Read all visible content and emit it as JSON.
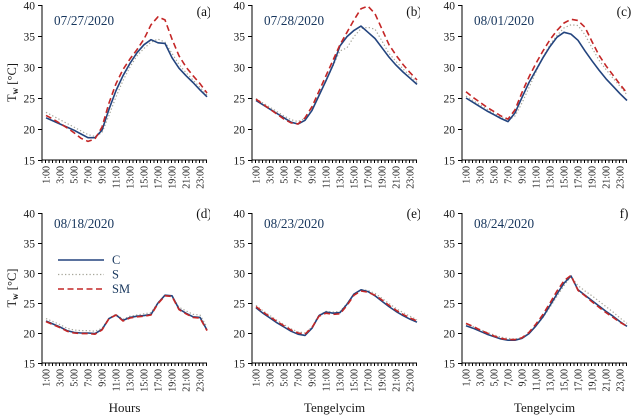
{
  "figure": {
    "background": "#ffffff",
    "axis_color": "#000000",
    "tick_text_color": "#1a1a1a",
    "date_color": "#17365d",
    "panel_color": "#111111",
    "series_colors": {
      "C": "#23447e",
      "S": "#a6a69a",
      "SM": "#c42626"
    },
    "legend": {
      "entries": [
        "C",
        "S",
        "SM"
      ]
    },
    "ylabel_parts": {
      "main": "T",
      "sub": "w",
      "unit": " [°C]"
    },
    "y_ticks": [
      15,
      20,
      25,
      30,
      35,
      40
    ],
    "x_hours": [
      1,
      2,
      3,
      4,
      5,
      6,
      7,
      8,
      9,
      10,
      11,
      12,
      13,
      14,
      15,
      16,
      17,
      18,
      19,
      20,
      21,
      22,
      23,
      24
    ],
    "x_tick_labels_colon": [
      "1:00",
      "3:00",
      "5:00",
      "7:00",
      "9:00",
      "11:00",
      "13:00",
      "15:00",
      "17:00",
      "19:00",
      "21:00",
      "23:00"
    ],
    "x_tick_labels_comma": [
      "1,00",
      "3,00",
      "5,00",
      "7,00",
      "9,00",
      "11,00",
      "13,00",
      "15,00",
      "17,00",
      "19,00",
      "21,00",
      "23,00"
    ]
  },
  "chart_data": [
    {
      "type": "line",
      "panel_label": "(a)",
      "date": "07/27/2020",
      "xlabel": "",
      "has_ylabel": true,
      "legend_visible": false,
      "tick_style": "colon",
      "ylim": [
        15,
        40
      ],
      "series": [
        {
          "name": "C",
          "values": [
            21.8,
            21.3,
            20.8,
            20.3,
            19.8,
            19.2,
            18.6,
            18.6,
            19.8,
            23.2,
            26.2,
            28.6,
            30.6,
            32.3,
            33.6,
            34.4,
            33.9,
            33.8,
            31.5,
            29.8,
            28.6,
            27.5,
            26.3,
            25.2
          ]
        },
        {
          "name": "S",
          "values": [
            22.7,
            22.1,
            21.5,
            20.9,
            20.3,
            19.7,
            19.1,
            18.8,
            19.4,
            22.2,
            25.2,
            27.8,
            30.0,
            31.8,
            33.0,
            34.0,
            34.5,
            34.0,
            32.2,
            30.4,
            29.1,
            27.9,
            26.7,
            25.5
          ]
        },
        {
          "name": "SM",
          "values": [
            22.2,
            21.6,
            20.9,
            20.2,
            19.4,
            18.5,
            18.0,
            18.4,
            20.3,
            24.2,
            27.3,
            29.6,
            31.3,
            32.8,
            34.5,
            36.8,
            38.1,
            37.6,
            34.5,
            31.8,
            30.0,
            28.6,
            27.3,
            25.8
          ]
        }
      ]
    },
    {
      "type": "line",
      "panel_label": "(b)",
      "date": "07/28/2020",
      "xlabel": "",
      "has_ylabel": false,
      "legend_visible": false,
      "tick_style": "colon",
      "ylim": [
        15,
        40
      ],
      "series": [
        {
          "name": "C",
          "values": [
            24.6,
            23.9,
            23.2,
            22.5,
            21.8,
            21.1,
            20.8,
            21.4,
            23.0,
            25.4,
            27.8,
            30.3,
            33.4,
            34.9,
            35.9,
            36.6,
            35.6,
            34.6,
            33.1,
            31.6,
            30.3,
            29.2,
            28.2,
            27.2
          ]
        },
        {
          "name": "S",
          "values": [
            24.9,
            24.2,
            23.5,
            22.8,
            22.1,
            21.5,
            21.2,
            21.7,
            23.1,
            25.4,
            27.8,
            30.2,
            32.6,
            33.1,
            34.9,
            36.2,
            36.4,
            36.1,
            34.2,
            32.2,
            30.9,
            29.7,
            28.6,
            27.5
          ]
        },
        {
          "name": "SM",
          "values": [
            24.8,
            24.0,
            23.2,
            22.4,
            21.6,
            21.0,
            20.8,
            21.8,
            23.6,
            26.1,
            28.6,
            31.1,
            33.6,
            35.6,
            37.6,
            39.4,
            39.8,
            38.6,
            36.1,
            33.6,
            31.9,
            30.4,
            29.1,
            27.9
          ]
        }
      ]
    },
    {
      "type": "line",
      "panel_label": "(c)",
      "date": "08/01/2020",
      "xlabel": "",
      "has_ylabel": false,
      "legend_visible": false,
      "tick_style": "colon",
      "ylim": [
        15,
        40
      ],
      "series": [
        {
          "name": "C",
          "values": [
            25.0,
            24.3,
            23.6,
            22.9,
            22.3,
            21.7,
            21.2,
            22.6,
            25.1,
            27.5,
            29.5,
            31.5,
            33.3,
            34.8,
            35.6,
            35.3,
            34.3,
            32.6,
            31.0,
            29.5,
            28.1,
            26.9,
            25.7,
            24.6
          ]
        },
        {
          "name": "S",
          "values": [
            25.3,
            24.6,
            23.9,
            23.2,
            22.5,
            21.9,
            21.4,
            22.1,
            24.2,
            26.7,
            29.2,
            31.6,
            33.6,
            35.1,
            36.3,
            36.8,
            36.7,
            35.2,
            33.1,
            31.1,
            29.6,
            28.2,
            26.9,
            25.5
          ]
        },
        {
          "name": "SM",
          "values": [
            26.0,
            25.1,
            24.3,
            23.5,
            22.8,
            22.1,
            21.6,
            23.1,
            25.9,
            28.4,
            30.6,
            32.6,
            34.4,
            35.9,
            37.1,
            37.7,
            37.5,
            36.4,
            34.1,
            31.9,
            30.2,
            28.7,
            27.2,
            25.8
          ]
        }
      ]
    },
    {
      "type": "line",
      "panel_label": "(d)",
      "date": "08/18/2020",
      "xlabel": "Hours",
      "has_ylabel": true,
      "legend_visible": true,
      "tick_style": "colon",
      "ylim": [
        15,
        40
      ],
      "series": [
        {
          "name": "C",
          "values": [
            22.0,
            21.5,
            21.0,
            20.4,
            20.1,
            20.0,
            20.0,
            19.9,
            20.6,
            22.4,
            23.0,
            22.1,
            22.6,
            22.8,
            22.9,
            23.1,
            25.0,
            26.3,
            26.2,
            24.0,
            23.3,
            22.7,
            22.6,
            20.5
          ]
        },
        {
          "name": "S",
          "values": [
            22.4,
            21.9,
            21.4,
            20.8,
            20.5,
            20.4,
            20.4,
            20.3,
            20.8,
            22.5,
            23.1,
            22.3,
            22.8,
            23.0,
            23.2,
            23.4,
            25.1,
            26.3,
            26.2,
            24.3,
            23.7,
            23.1,
            23.0,
            21.0
          ]
        },
        {
          "name": "SM",
          "values": [
            21.9,
            21.4,
            20.9,
            20.3,
            20.0,
            19.9,
            19.9,
            19.8,
            20.5,
            22.4,
            23.0,
            22.0,
            22.5,
            22.7,
            22.8,
            23.0,
            24.9,
            26.2,
            26.1,
            23.9,
            23.2,
            22.6,
            22.5,
            20.4
          ]
        }
      ]
    },
    {
      "type": "line",
      "panel_label": "(e)",
      "date": "08/23/2020",
      "xlabel": "Tengelycim",
      "has_ylabel": false,
      "legend_visible": false,
      "tick_style": "colon",
      "ylim": [
        15,
        40
      ],
      "series": [
        {
          "name": "C",
          "values": [
            24.2,
            23.3,
            22.5,
            21.7,
            21.0,
            20.3,
            19.8,
            19.6,
            20.8,
            22.9,
            23.5,
            23.3,
            23.4,
            24.8,
            26.5,
            27.2,
            26.9,
            26.2,
            25.3,
            24.4,
            23.6,
            22.9,
            22.3,
            21.8
          ]
        },
        {
          "name": "S",
          "values": [
            24.6,
            23.7,
            22.9,
            22.1,
            21.4,
            20.7,
            20.2,
            20.0,
            21.0,
            23.0,
            23.6,
            23.5,
            23.6,
            24.9,
            26.5,
            27.2,
            27.1,
            26.6,
            25.8,
            24.9,
            24.1,
            23.4,
            22.8,
            22.2
          ]
        },
        {
          "name": "SM",
          "values": [
            24.4,
            23.5,
            22.7,
            21.9,
            21.2,
            20.5,
            20.0,
            19.8,
            20.9,
            22.8,
            23.3,
            23.1,
            23.2,
            24.6,
            26.3,
            27.0,
            26.8,
            26.3,
            25.5,
            24.6,
            23.8,
            23.1,
            22.5,
            22.0
          ]
        }
      ]
    },
    {
      "type": "line",
      "panel_label": "f)",
      "date": "08/24/2020",
      "xlabel": "Tengelycim",
      "has_ylabel": false,
      "legend_visible": false,
      "tick_style": "comma",
      "ylim": [
        15,
        40
      ],
      "series": [
        {
          "name": "C",
          "values": [
            21.2,
            20.8,
            20.3,
            19.8,
            19.4,
            19.0,
            18.8,
            18.8,
            19.1,
            19.9,
            21.2,
            22.7,
            24.6,
            26.5,
            28.3,
            29.5,
            27.2,
            26.3,
            25.4,
            24.5,
            23.6,
            22.8,
            21.9,
            21.1
          ]
        },
        {
          "name": "S",
          "values": [
            21.5,
            21.1,
            20.6,
            20.1,
            19.7,
            19.3,
            19.1,
            19.0,
            19.2,
            20.0,
            21.2,
            22.6,
            24.3,
            26.1,
            27.9,
            29.4,
            27.9,
            27.0,
            26.2,
            25.3,
            24.4,
            23.5,
            22.5,
            21.6
          ]
        },
        {
          "name": "SM",
          "values": [
            21.6,
            21.1,
            20.5,
            20.0,
            19.5,
            19.1,
            18.9,
            18.9,
            19.2,
            20.1,
            21.5,
            23.1,
            25.0,
            27.0,
            28.7,
            29.6,
            27.1,
            26.2,
            25.2,
            24.3,
            23.4,
            22.6,
            21.8,
            21.1
          ]
        }
      ]
    }
  ]
}
